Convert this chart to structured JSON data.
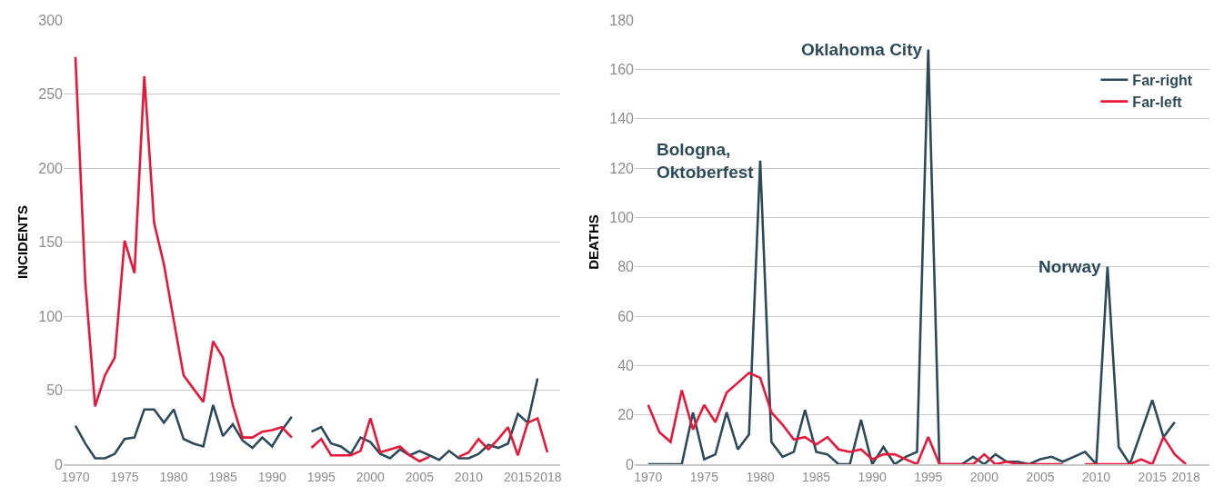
{
  "chart_data": [
    {
      "type": "line",
      "ylabel": "INCIDENTS",
      "x": [
        1970,
        1971,
        1972,
        1973,
        1974,
        1975,
        1976,
        1977,
        1978,
        1979,
        1980,
        1981,
        1982,
        1983,
        1984,
        1985,
        1986,
        1987,
        1988,
        1989,
        1990,
        1991,
        1992,
        1993,
        1994,
        1995,
        1996,
        1997,
        1998,
        1999,
        2000,
        2001,
        2002,
        2003,
        2004,
        2005,
        2006,
        2007,
        2008,
        2009,
        2010,
        2011,
        2012,
        2013,
        2014,
        2015,
        2016,
        2017,
        2018
      ],
      "series": [
        {
          "color": "#2d4a5a",
          "values": [
            26,
            14,
            4,
            4,
            7,
            17,
            18,
            37,
            37,
            28,
            37,
            17,
            14,
            12,
            40,
            19,
            27,
            16,
            11,
            18,
            12,
            23,
            32,
            null,
            22,
            25,
            14,
            12,
            7,
            18,
            15,
            7,
            4,
            10,
            6,
            9,
            6,
            3,
            9,
            4,
            4,
            7,
            13,
            11,
            14,
            34,
            28,
            58,
            null
          ]
        },
        {
          "color": "#e8173a",
          "values": [
            275,
            123,
            39,
            60,
            72,
            151,
            129,
            262,
            163,
            135,
            97,
            60,
            51,
            42,
            83,
            72,
            40,
            18,
            18,
            22,
            23,
            25,
            18,
            null,
            11,
            17,
            6,
            6,
            6,
            9,
            31,
            8,
            10,
            12,
            6,
            2,
            5,
            null,
            null,
            5,
            8,
            17,
            10,
            17,
            25,
            6,
            28,
            31,
            8
          ]
        }
      ],
      "xlim": [
        1968.8,
        2019.3
      ],
      "xticks": [
        1970,
        1975,
        1980,
        1985,
        1990,
        1995,
        2000,
        2005,
        2010,
        2015,
        2018
      ],
      "ylim": [
        0,
        300
      ],
      "yticks": [
        0,
        50,
        100,
        150,
        200,
        250,
        300
      ],
      "grid": "y",
      "legend": false
    },
    {
      "type": "line",
      "ylabel": "DEATHS",
      "x": [
        1970,
        1971,
        1972,
        1973,
        1974,
        1975,
        1976,
        1977,
        1978,
        1979,
        1980,
        1981,
        1982,
        1983,
        1984,
        1985,
        1986,
        1987,
        1988,
        1989,
        1990,
        1991,
        1992,
        1993,
        1994,
        1995,
        1996,
        1997,
        1998,
        1999,
        2000,
        2001,
        2002,
        2003,
        2004,
        2005,
        2006,
        2007,
        2008,
        2009,
        2010,
        2011,
        2012,
        2013,
        2014,
        2015,
        2016,
        2017,
        2018
      ],
      "series": [
        {
          "name": "Far-right",
          "color": "#2d4a5a",
          "values": [
            0,
            0,
            0,
            0,
            21,
            2,
            4,
            21,
            6,
            12,
            123,
            9,
            3,
            5,
            22,
            5,
            4,
            0,
            0,
            18,
            0,
            7,
            0,
            3,
            5,
            168,
            0,
            0,
            0,
            3,
            0,
            4,
            1,
            1,
            0,
            2,
            3,
            1,
            3,
            5,
            0,
            80,
            7,
            0,
            13,
            26,
            11,
            17,
            null
          ]
        },
        {
          "name": "Far-left",
          "color": "#e8173a",
          "values": [
            24,
            13,
            9,
            30,
            14,
            24,
            17,
            29,
            33,
            37,
            35,
            21,
            16,
            10,
            11,
            8,
            11,
            6,
            5,
            6,
            2,
            4,
            4,
            2,
            0,
            11,
            0,
            0,
            0,
            0,
            4,
            0,
            1,
            0,
            0,
            0,
            0,
            0,
            null,
            0,
            0,
            0,
            0,
            0,
            2,
            0,
            11,
            4,
            0
          ]
        }
      ],
      "annotations": [
        {
          "text": "Bologna,\nOktoberfest",
          "x": 1980,
          "y": 123
        },
        {
          "text": "Oklahoma City",
          "x": 1995,
          "y": 168
        },
        {
          "text": "Norway",
          "x": 2011,
          "y": 80
        }
      ],
      "xlim": [
        1968.8,
        2020.1
      ],
      "xticks": [
        1970,
        1975,
        1980,
        1985,
        1990,
        1995,
        2000,
        2005,
        2010,
        2015,
        2018
      ],
      "ylim": [
        0,
        180
      ],
      "yticks": [
        0,
        20,
        40,
        60,
        80,
        100,
        120,
        140,
        160,
        180
      ],
      "grid": "y",
      "legend": "top right"
    }
  ]
}
